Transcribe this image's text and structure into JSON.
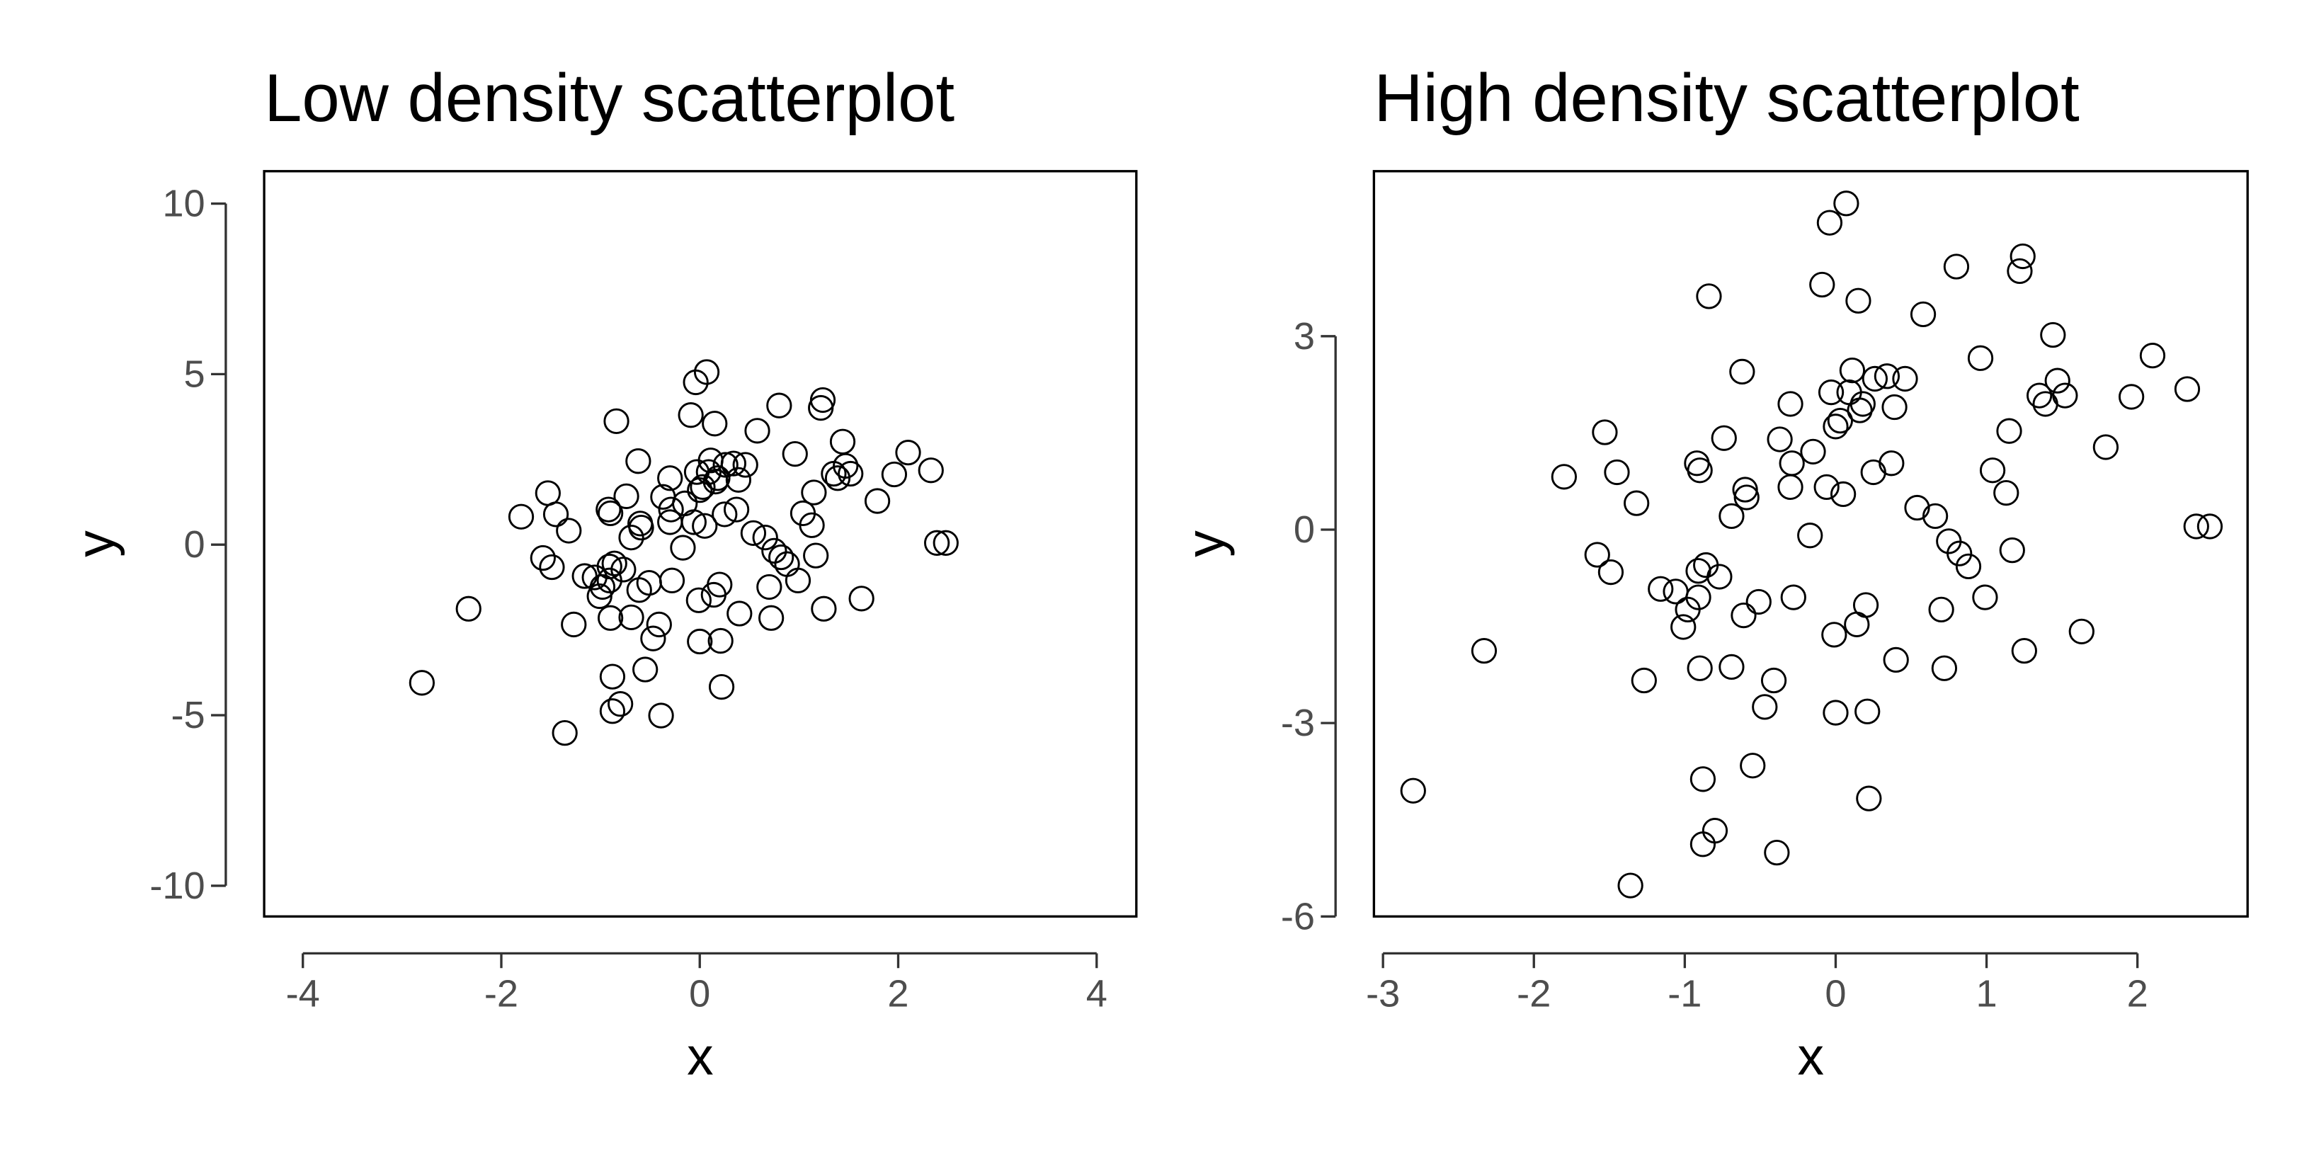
{
  "chart_data": [
    {
      "type": "scatter",
      "title": "Low density scatterplot",
      "x_label": "x",
      "y_label": "y",
      "color": "#000000",
      "xlim": [
        -4.39,
        4.4
      ],
      "ylim": [
        -10.9,
        10.95
      ],
      "xticks": [
        -4,
        -2,
        0,
        2,
        4
      ],
      "yticks": [
        -10,
        -5,
        0,
        5,
        10
      ],
      "x": [
        -2.8,
        -2.33,
        -1.8,
        -1.58,
        -1.53,
        -1.49,
        -1.45,
        -1.32,
        -1.27,
        -1.36,
        -1.16,
        -1.06,
        -1.01,
        -0.98,
        -0.92,
        -0.9,
        -0.91,
        -0.9,
        -0.88,
        -0.88,
        -0.8,
        -0.86,
        -0.91,
        -0.84,
        -0.77,
        -0.74,
        -0.69,
        -0.69,
        -0.62,
        -0.61,
        -0.6,
        -0.59,
        -0.55,
        -0.51,
        -0.47,
        -0.41,
        -0.39,
        -0.37,
        -0.3,
        -0.29,
        -0.28,
        -0.3,
        -0.17,
        -0.15,
        -0.09,
        -0.06,
        -0.04,
        -0.03,
        -0.01,
        0.0,
        0.0,
        0.03,
        0.05,
        0.07,
        0.09,
        0.11,
        0.14,
        0.15,
        0.16,
        0.18,
        0.21,
        0.22,
        0.2,
        0.25,
        0.26,
        0.34,
        0.37,
        0.39,
        0.4,
        0.46,
        0.54,
        0.58,
        0.66,
        0.7,
        0.72,
        0.75,
        0.8,
        0.82,
        0.88,
        0.96,
        0.99,
        1.04,
        1.13,
        1.15,
        1.17,
        1.22,
        1.24,
        1.25,
        1.35,
        1.39,
        1.44,
        1.47,
        1.52,
        1.63,
        1.79,
        1.96,
        2.1,
        2.33,
        2.39,
        2.48
      ],
      "y": [
        -4.05,
        -1.88,
        0.82,
        -0.39,
        1.51,
        -0.66,
        0.89,
        0.41,
        -2.34,
        -5.52,
        -0.92,
        -0.96,
        -1.51,
        -1.24,
        1.03,
        0.92,
        -0.64,
        -2.15,
        -3.87,
        -4.88,
        -4.67,
        -0.55,
        -1.05,
        3.62,
        -0.73,
        1.42,
        0.21,
        -2.13,
        2.45,
        -1.33,
        0.62,
        0.5,
        -3.66,
        -1.12,
        -2.75,
        -2.34,
        -5.01,
        1.4,
        1.95,
        1.03,
        -1.05,
        0.66,
        -0.09,
        1.21,
        3.8,
        0.66,
        4.76,
        2.13,
        -1.63,
        -2.84,
        1.6,
        1.69,
        0.55,
        5.06,
        2.13,
        2.47,
        -1.47,
        3.55,
        1.85,
        1.95,
        -2.82,
        -4.17,
        -1.17,
        0.89,
        2.34,
        2.38,
        1.03,
        1.9,
        -2.02,
        2.34,
        0.34,
        3.34,
        0.21,
        -1.24,
        -2.15,
        -0.18,
        4.08,
        -0.37,
        -0.57,
        2.66,
        -1.05,
        0.92,
        0.57,
        1.53,
        -0.32,
        4.01,
        4.24,
        -1.88,
        2.08,
        1.95,
        3.02,
        2.31,
        2.08,
        -1.58,
        1.28,
        2.06,
        2.7,
        2.18,
        0.05,
        0.05
      ]
    },
    {
      "type": "scatter",
      "title": "High density scatterplot",
      "x_label": "x",
      "y_label": "y",
      "color": "#000000",
      "xlim": [
        -3.06,
        2.73
      ],
      "ylim": [
        -6.0,
        5.56
      ],
      "xticks": [
        -3,
        -2,
        -1,
        0,
        1,
        2
      ],
      "yticks": [
        -6,
        -3,
        0,
        3
      ],
      "x": [
        -2.8,
        -2.33,
        -1.8,
        -1.58,
        -1.53,
        -1.49,
        -1.45,
        -1.32,
        -1.27,
        -1.36,
        -1.16,
        -1.06,
        -1.01,
        -0.98,
        -0.92,
        -0.9,
        -0.91,
        -0.9,
        -0.88,
        -0.88,
        -0.8,
        -0.86,
        -0.91,
        -0.84,
        -0.77,
        -0.74,
        -0.69,
        -0.69,
        -0.62,
        -0.61,
        -0.6,
        -0.59,
        -0.55,
        -0.51,
        -0.47,
        -0.41,
        -0.39,
        -0.37,
        -0.3,
        -0.29,
        -0.28,
        -0.3,
        -0.17,
        -0.15,
        -0.09,
        -0.06,
        -0.04,
        -0.03,
        -0.01,
        0.0,
        0.0,
        0.03,
        0.05,
        0.07,
        0.09,
        0.11,
        0.14,
        0.15,
        0.16,
        0.18,
        0.21,
        0.22,
        0.2,
        0.25,
        0.26,
        0.34,
        0.37,
        0.39,
        0.4,
        0.46,
        0.54,
        0.58,
        0.66,
        0.7,
        0.72,
        0.75,
        0.8,
        0.82,
        0.88,
        0.96,
        0.99,
        1.04,
        1.13,
        1.15,
        1.17,
        1.22,
        1.24,
        1.25,
        1.35,
        1.39,
        1.44,
        1.47,
        1.52,
        1.63,
        1.79,
        1.96,
        2.1,
        2.33,
        2.39,
        2.48
      ],
      "y": [
        -4.05,
        -1.88,
        0.82,
        -0.39,
        1.51,
        -0.66,
        0.89,
        0.41,
        -2.34,
        -5.52,
        -0.92,
        -0.96,
        -1.51,
        -1.24,
        1.03,
        0.92,
        -0.64,
        -2.15,
        -3.87,
        -4.88,
        -4.67,
        -0.55,
        -1.05,
        3.62,
        -0.73,
        1.42,
        0.21,
        -2.13,
        2.45,
        -1.33,
        0.62,
        0.5,
        -3.66,
        -1.12,
        -2.75,
        -2.34,
        -5.01,
        1.4,
        1.95,
        1.03,
        -1.05,
        0.66,
        -0.09,
        1.21,
        3.8,
        0.66,
        4.76,
        2.13,
        -1.63,
        -2.84,
        1.6,
        1.69,
        0.55,
        5.06,
        2.13,
        2.47,
        -1.47,
        3.55,
        1.85,
        1.95,
        -2.82,
        -4.17,
        -1.17,
        0.89,
        2.34,
        2.38,
        1.03,
        1.9,
        -2.02,
        2.34,
        0.34,
        3.34,
        0.21,
        -1.24,
        -2.15,
        -0.18,
        4.08,
        -0.37,
        -0.57,
        2.66,
        -1.05,
        0.92,
        0.57,
        1.53,
        -0.32,
        4.01,
        4.24,
        -1.88,
        2.08,
        1.95,
        3.02,
        2.31,
        2.08,
        -1.58,
        1.28,
        2.06,
        2.7,
        2.18,
        0.05,
        0.05
      ]
    }
  ]
}
